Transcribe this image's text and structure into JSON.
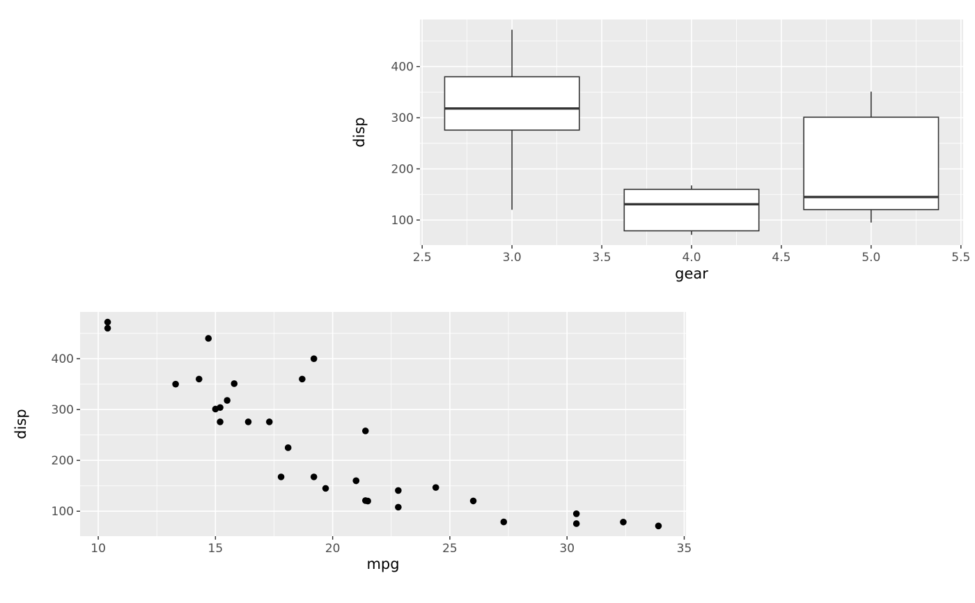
{
  "chart_data": [
    {
      "id": "boxplot",
      "type": "boxplot",
      "title": "",
      "xlabel": "gear",
      "ylabel": "disp",
      "xlim": [
        2.4875,
        5.5125
      ],
      "ylim": [
        51,
        492
      ],
      "x_ticks": [
        2.5,
        3.0,
        3.5,
        4.0,
        4.5,
        5.0,
        5.5
      ],
      "x_tick_labels": [
        "2.5",
        "3.0",
        "3.5",
        "4.0",
        "4.5",
        "5.0",
        "5.5"
      ],
      "y_ticks": [
        100,
        200,
        300,
        400
      ],
      "y_tick_labels": [
        "100",
        "200",
        "300",
        "400"
      ],
      "grid": true,
      "box_width": 0.75,
      "boxes": [
        {
          "group": 3,
          "whisker_low": 120.1,
          "q1": 275.8,
          "median": 318,
          "q3": 380,
          "whisker_high": 472
        },
        {
          "group": 4,
          "whisker_low": 71.1,
          "q1": 78.9,
          "median": 130.9,
          "q3": 160,
          "whisker_high": 167.6
        },
        {
          "group": 5,
          "whisker_low": 95.1,
          "q1": 120.3,
          "median": 145,
          "q3": 301,
          "whisker_high": 351
        }
      ]
    },
    {
      "id": "scatter",
      "type": "scatter",
      "title": "",
      "xlabel": "mpg",
      "ylabel": "disp",
      "xlim": [
        9.225,
        35.075
      ],
      "ylim": [
        51,
        492
      ],
      "x_ticks": [
        10,
        15,
        20,
        25,
        30,
        35
      ],
      "x_tick_labels": [
        "10",
        "15",
        "20",
        "25",
        "30",
        "35"
      ],
      "y_ticks": [
        100,
        200,
        300,
        400
      ],
      "y_tick_labels": [
        "100",
        "200",
        "300",
        "400"
      ],
      "grid": true,
      "points": [
        [
          21.0,
          160.0
        ],
        [
          21.0,
          160.0
        ],
        [
          22.8,
          108.0
        ],
        [
          21.4,
          258.0
        ],
        [
          18.7,
          360.0
        ],
        [
          18.1,
          225.0
        ],
        [
          14.3,
          360.0
        ],
        [
          24.4,
          146.7
        ],
        [
          22.8,
          140.8
        ],
        [
          19.2,
          167.6
        ],
        [
          17.8,
          167.6
        ],
        [
          16.4,
          275.8
        ],
        [
          17.3,
          275.8
        ],
        [
          15.2,
          275.8
        ],
        [
          10.4,
          472.0
        ],
        [
          10.4,
          460.0
        ],
        [
          14.7,
          440.0
        ],
        [
          32.4,
          78.7
        ],
        [
          30.4,
          75.7
        ],
        [
          33.9,
          71.1
        ],
        [
          21.5,
          120.1
        ],
        [
          15.5,
          318.0
        ],
        [
          15.2,
          304.0
        ],
        [
          13.3,
          350.0
        ],
        [
          19.2,
          400.0
        ],
        [
          27.3,
          79.0
        ],
        [
          26.0,
          120.3
        ],
        [
          30.4,
          95.1
        ],
        [
          15.8,
          351.0
        ],
        [
          19.7,
          145.0
        ],
        [
          15.0,
          301.0
        ],
        [
          21.4,
          121.0
        ]
      ]
    }
  ],
  "theme": {
    "background": "#FFFFFF",
    "panel_bg": "#EBEBEB",
    "grid_major": "#FFFFFF",
    "grid_minor": "#FFFFFF",
    "axis_text": "#4D4D4D",
    "axis_title": "#000000",
    "tick_color": "#333333",
    "point_color": "#000000",
    "box_border": "#333333",
    "box_fill": "#FFFFFF"
  }
}
